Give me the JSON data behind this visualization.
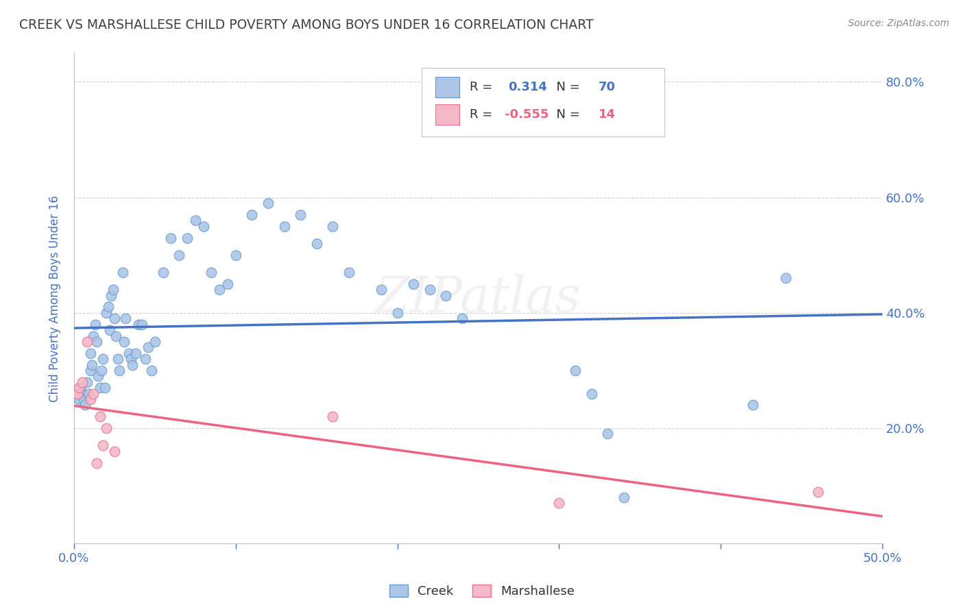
{
  "title": "CREEK VS MARSHALLESE CHILD POVERTY AMONG BOYS UNDER 16 CORRELATION CHART",
  "source": "Source: ZipAtlas.com",
  "ylabel": "Child Poverty Among Boys Under 16",
  "xlim": [
    0.0,
    0.5
  ],
  "ylim": [
    0.0,
    0.85
  ],
  "xticks": [
    0.0,
    0.1,
    0.2,
    0.3,
    0.4,
    0.5
  ],
  "xtick_labels_show": [
    "0.0%",
    "",
    "",
    "",
    "",
    "50.0%"
  ],
  "yticks_right": [
    0.2,
    0.4,
    0.6,
    0.8
  ],
  "ytick_right_labels": [
    "20.0%",
    "40.0%",
    "60.0%",
    "80.0%"
  ],
  "creek_color": "#adc6e8",
  "creek_edge_color": "#6699cc",
  "marshallese_color": "#f5b8c8",
  "marshallese_edge_color": "#e87090",
  "creek_line_color": "#4472c4",
  "marshallese_line_color": "#f06080",
  "creek_R": 0.314,
  "creek_N": 70,
  "marshallese_R": -0.555,
  "marshallese_N": 14,
  "watermark": "ZIPatlas",
  "creek_scatter_x": [
    0.002,
    0.003,
    0.004,
    0.005,
    0.006,
    0.007,
    0.008,
    0.009,
    0.01,
    0.01,
    0.011,
    0.012,
    0.013,
    0.014,
    0.015,
    0.016,
    0.017,
    0.018,
    0.019,
    0.02,
    0.021,
    0.022,
    0.023,
    0.024,
    0.025,
    0.026,
    0.027,
    0.028,
    0.03,
    0.031,
    0.032,
    0.034,
    0.035,
    0.036,
    0.038,
    0.04,
    0.042,
    0.044,
    0.046,
    0.048,
    0.05,
    0.055,
    0.06,
    0.065,
    0.07,
    0.075,
    0.08,
    0.085,
    0.09,
    0.095,
    0.1,
    0.11,
    0.12,
    0.13,
    0.14,
    0.15,
    0.16,
    0.17,
    0.19,
    0.2,
    0.21,
    0.22,
    0.23,
    0.24,
    0.31,
    0.32,
    0.33,
    0.34,
    0.42,
    0.44
  ],
  "creek_scatter_y": [
    0.26,
    0.25,
    0.27,
    0.26,
    0.25,
    0.24,
    0.28,
    0.26,
    0.3,
    0.33,
    0.31,
    0.36,
    0.38,
    0.35,
    0.29,
    0.27,
    0.3,
    0.32,
    0.27,
    0.4,
    0.41,
    0.37,
    0.43,
    0.44,
    0.39,
    0.36,
    0.32,
    0.3,
    0.47,
    0.35,
    0.39,
    0.33,
    0.32,
    0.31,
    0.33,
    0.38,
    0.38,
    0.32,
    0.34,
    0.3,
    0.35,
    0.47,
    0.53,
    0.5,
    0.53,
    0.56,
    0.55,
    0.47,
    0.44,
    0.45,
    0.5,
    0.57,
    0.59,
    0.55,
    0.57,
    0.52,
    0.55,
    0.47,
    0.44,
    0.4,
    0.45,
    0.44,
    0.43,
    0.39,
    0.3,
    0.26,
    0.19,
    0.08,
    0.24,
    0.46
  ],
  "marshallese_scatter_x": [
    0.002,
    0.003,
    0.005,
    0.008,
    0.01,
    0.012,
    0.014,
    0.016,
    0.018,
    0.02,
    0.025,
    0.16,
    0.3,
    0.46
  ],
  "marshallese_scatter_y": [
    0.26,
    0.27,
    0.28,
    0.35,
    0.25,
    0.26,
    0.14,
    0.22,
    0.17,
    0.2,
    0.16,
    0.22,
    0.07,
    0.09
  ],
  "background_color": "#ffffff",
  "axis_color": "#4472c4",
  "title_color": "#404040",
  "grid_color": "#d0d0d0",
  "tick_color": "#cccccc"
}
